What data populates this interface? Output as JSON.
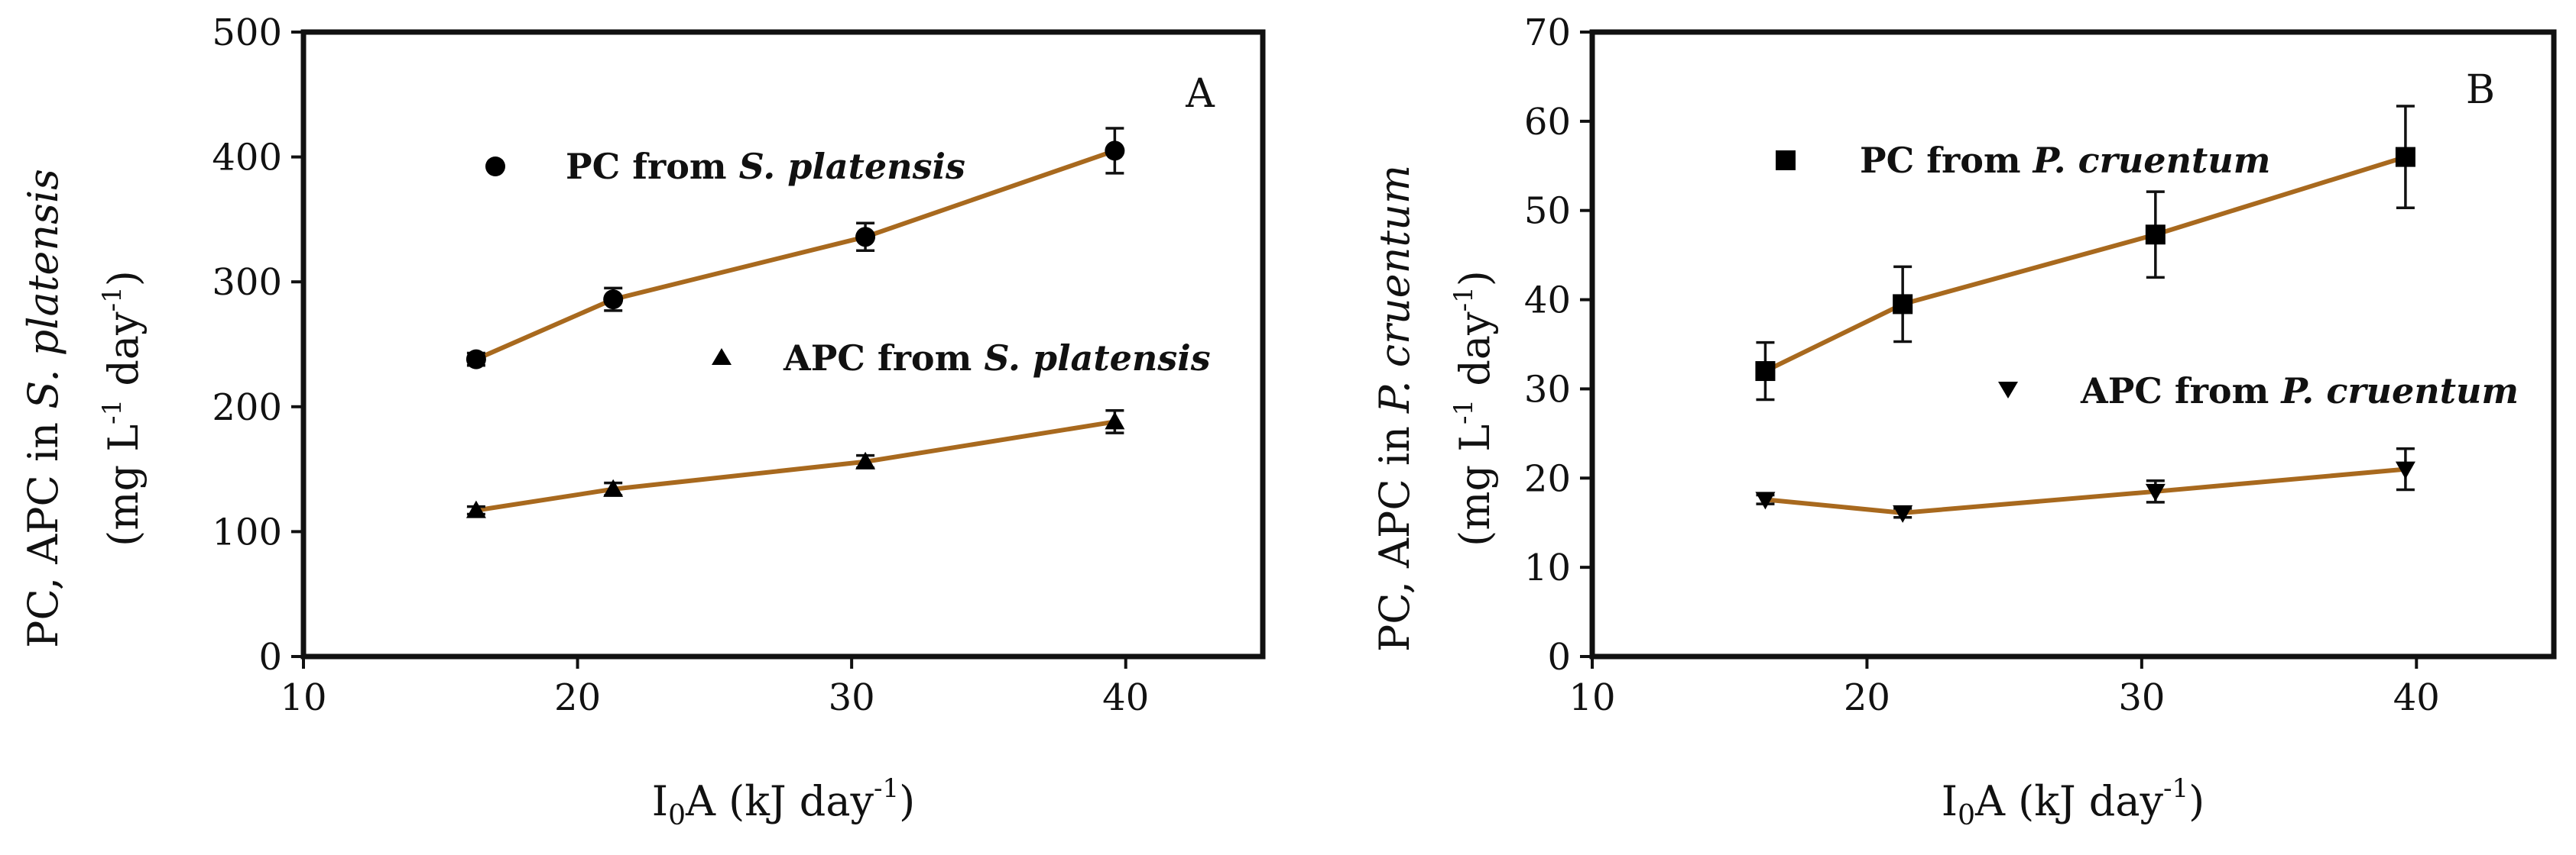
{
  "chart_data": [
    {
      "type": "line",
      "panel": "A",
      "xlabel_main": "I",
      "xlabel_sub": "0",
      "xlabel_rest": "A (kJ day",
      "xlabel_sup": "-1",
      "xlabel_close": ")",
      "ylabel_line1": {
        "pre": "PC, APC in ",
        "ital": "S. platensis"
      },
      "ylabel_line2": {
        "pre": "(mg L",
        "sup1": "-1",
        "mid": " day",
        "sup2": "-1",
        "post": ")"
      },
      "xlim": [
        10,
        45
      ],
      "ylim": [
        0,
        500
      ],
      "xticks": [
        10,
        20,
        30,
        40
      ],
      "yticks": [
        0,
        100,
        200,
        300,
        400,
        500
      ],
      "series": [
        {
          "name_pre": "PC from ",
          "name_ital": "S. platensis",
          "marker": "circle",
          "x": [
            16.3,
            21.3,
            30.5,
            39.6
          ],
          "y": [
            238,
            286,
            336,
            405
          ],
          "err": [
            5,
            9,
            11,
            18
          ]
        },
        {
          "name_pre": "APC from ",
          "name_ital": "S. platensis",
          "marker": "triangle-up",
          "x": [
            16.3,
            21.3,
            30.5,
            39.6
          ],
          "y": [
            117,
            134,
            156,
            188
          ],
          "err": [
            3,
            5,
            5,
            9
          ]
        }
      ]
    },
    {
      "type": "line",
      "panel": "B",
      "xlabel_main": "I",
      "xlabel_sub": "0",
      "xlabel_rest": "A (kJ day",
      "xlabel_sup": "-1",
      "xlabel_close": ")",
      "ylabel_line1": {
        "pre": "PC, APC in ",
        "ital": "P. cruentum"
      },
      "ylabel_line2": {
        "pre": "(mg L",
        "sup1": "-1",
        "mid": " day",
        "sup2": "-1",
        "post": ")"
      },
      "xlim": [
        10,
        45
      ],
      "ylim": [
        0,
        70
      ],
      "xticks": [
        10,
        20,
        30,
        40
      ],
      "yticks": [
        0,
        10,
        20,
        30,
        40,
        50,
        60,
        70
      ],
      "series": [
        {
          "name_pre": "PC from ",
          "name_ital": "P. cruentum",
          "marker": "square",
          "x": [
            16.3,
            21.3,
            30.5,
            39.6
          ],
          "y": [
            32,
            39.5,
            47.3,
            56
          ],
          "err": [
            3.2,
            4.2,
            4.8,
            5.7
          ]
        },
        {
          "name_pre": "APC from ",
          "name_ital": "P. cruentum",
          "marker": "triangle-down",
          "x": [
            16.3,
            21.3,
            30.5,
            39.6
          ],
          "y": [
            17.6,
            16.1,
            18.5,
            21
          ],
          "err": [
            0.5,
            0.5,
            1.2,
            2.3
          ]
        }
      ]
    }
  ],
  "colors": {
    "fit_line": "#A8691E",
    "marker": "#000000"
  }
}
